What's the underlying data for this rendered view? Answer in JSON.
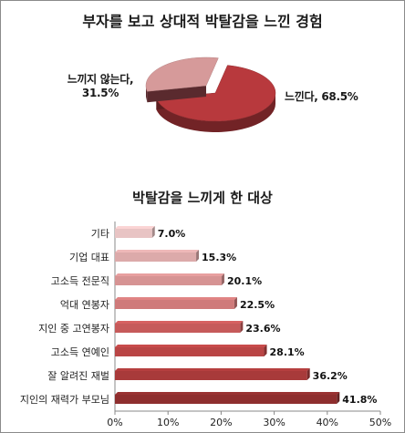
{
  "pie_chart": {
    "title": "부자를 보고 상대적 박탈감을 느낀 경험",
    "slices": [
      {
        "label": "느낀다",
        "value": 68.5,
        "text": "느낀다, 68.5%",
        "color": "#b8393d"
      },
      {
        "label": "느끼지 않는다",
        "value": 31.5,
        "text": "느끼지 않는다,\n31.5%",
        "color": "#d69a9a"
      }
    ]
  },
  "chart_data": {
    "type": "bar",
    "orientation": "horizontal",
    "title": "박탈감을 느끼게 한 대상",
    "categories": [
      "기타",
      "기업 대표",
      "고소득 전문직",
      "억대 연봉자",
      "지인 중 고연봉자",
      "고소득 연예인",
      "잘 알려진 재벌",
      "지인의 재력가 부모님"
    ],
    "values": [
      7.0,
      15.3,
      20.1,
      22.5,
      23.6,
      28.1,
      36.2,
      41.8
    ],
    "value_labels": [
      "7.0%",
      "15.3%",
      "20.1%",
      "22.5%",
      "23.6%",
      "28.1%",
      "36.2%",
      "41.8%"
    ],
    "xlim": [
      0,
      50
    ],
    "xticks": [
      "0%",
      "10%",
      "20%",
      "30%",
      "40%",
      "50%"
    ],
    "bar_colors": [
      "#e8c4c4",
      "#dcaaaa",
      "#d69393",
      "#cf7a7a",
      "#c65a5a",
      "#b94545",
      "#a83a3a",
      "#8e2e2e"
    ],
    "grid": false
  }
}
